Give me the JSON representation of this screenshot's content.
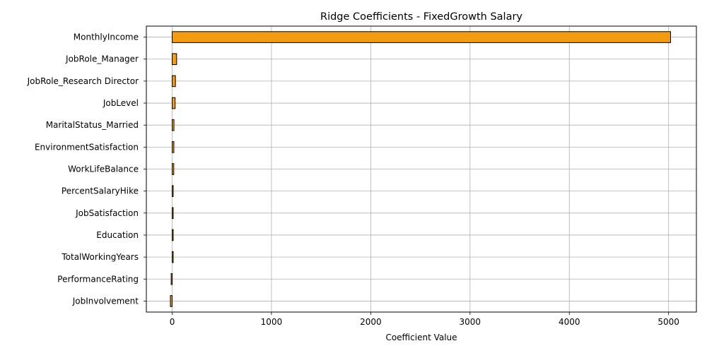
{
  "chart_data": {
    "type": "bar",
    "orientation": "horizontal",
    "title": "Ridge Coefficients - FixedGrowth Salary",
    "xlabel": "Coefficient Value",
    "ylabel": "",
    "categories": [
      "MonthlyIncome",
      "JobRole_Manager",
      "JobRole_Research Director",
      "JobLevel",
      "MaritalStatus_Married",
      "EnvironmentSatisfaction",
      "WorkLifeBalance",
      "PercentSalaryHike",
      "JobSatisfaction",
      "Education",
      "TotalWorkingYears",
      "PerformanceRating",
      "JobInvolvement"
    ],
    "values": [
      5020,
      45,
      33,
      30,
      18,
      17,
      16,
      7,
      6,
      6,
      5,
      -10,
      -18
    ],
    "xlim": [
      -260,
      5280
    ],
    "xticks": [
      0,
      1000,
      2000,
      3000,
      4000,
      5000
    ],
    "xtick_labels": [
      "0",
      "1000",
      "2000",
      "3000",
      "4000",
      "5000"
    ],
    "grid": true,
    "bar_color": "#f39c12",
    "edge_color": "#000000"
  }
}
